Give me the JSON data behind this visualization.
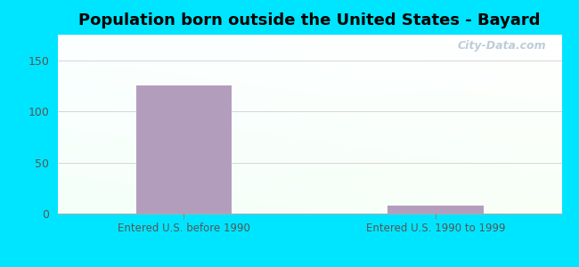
{
  "title": "Population born outside the United States - Bayard",
  "categories": [
    "Entered U.S. before 1990",
    "Entered U.S. 1990 to 1999"
  ],
  "values": [
    125,
    8
  ],
  "bar_color": "#b39dbd",
  "background_outer": "#00e5ff",
  "ylim": [
    0,
    175
  ],
  "yticks": [
    0,
    50,
    100,
    150
  ],
  "grid_color": "#cccccc",
  "watermark": "City-Data.com",
  "title_fontsize": 13,
  "tick_label_color": "#555555",
  "xlabel_color": "#555555"
}
